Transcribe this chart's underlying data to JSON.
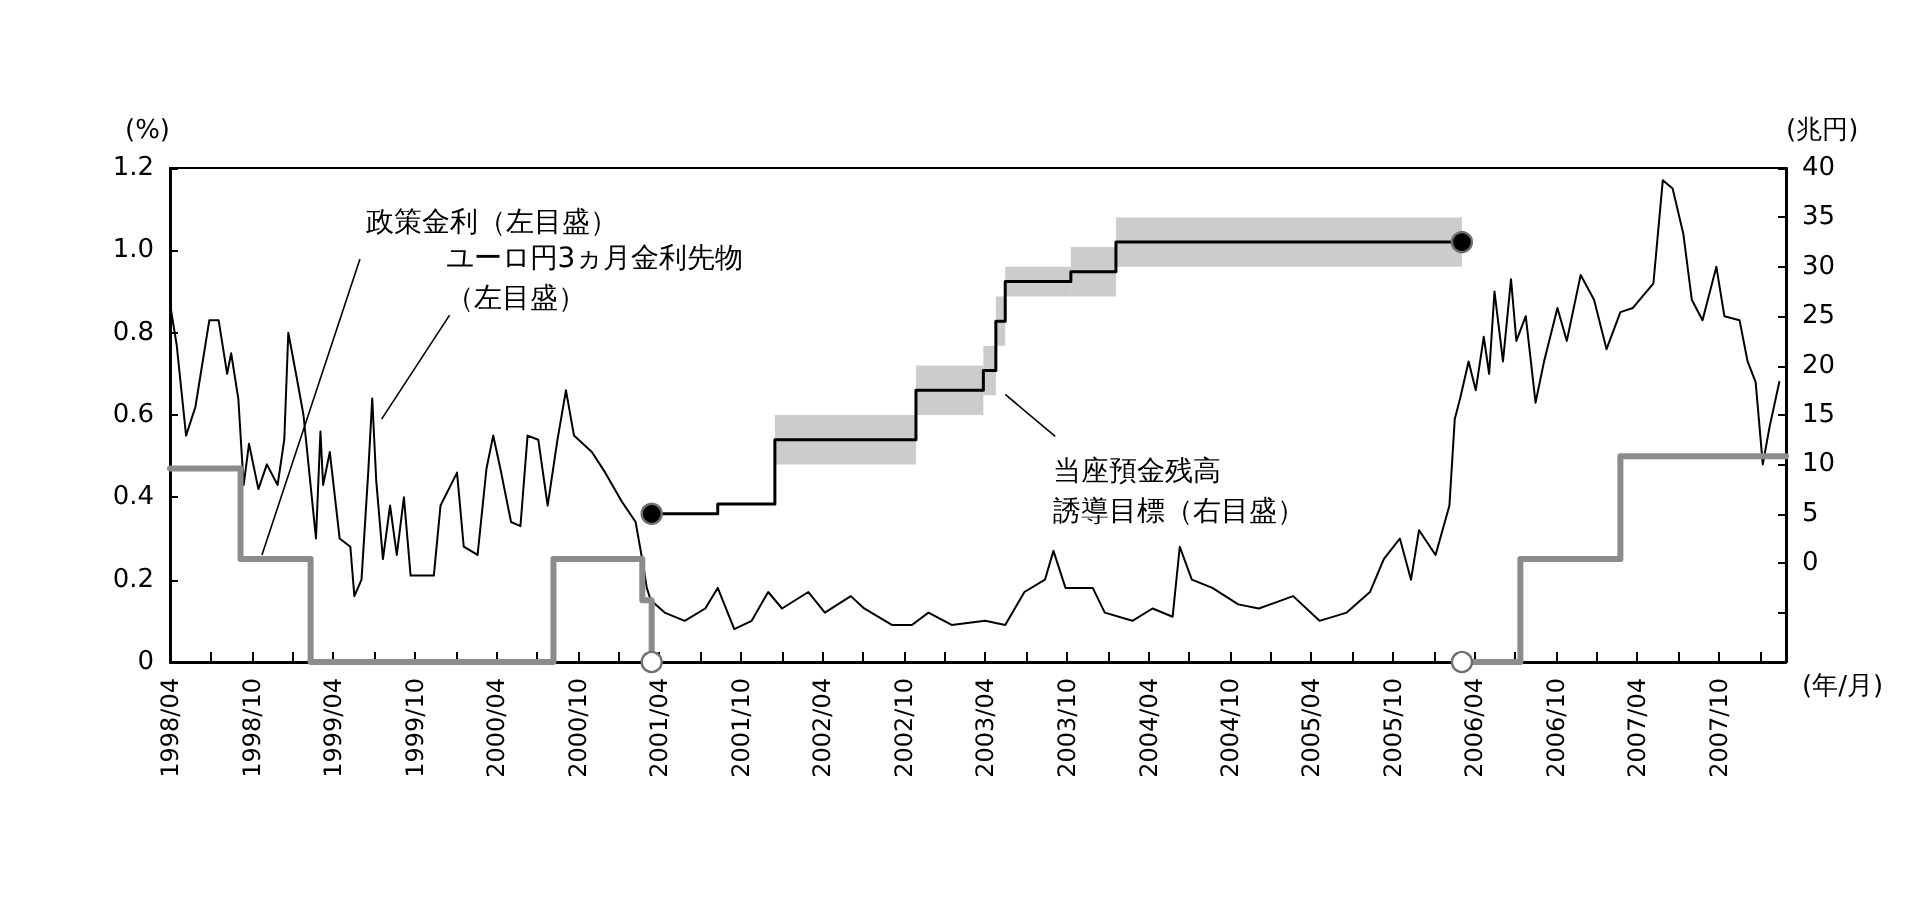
{
  "chart_data": {
    "type": "line",
    "ylabel": "(%)",
    "y2label": "(兆円)",
    "xlabel": "(年/月)",
    "xlim": [
      "1998-04-01",
      "2008-02-28"
    ],
    "ylim": [
      0,
      1.2
    ],
    "yticks": [
      0,
      0.2,
      0.4,
      0.6,
      0.8,
      {
        "value": 1,
        "label": "1.0"
      },
      1.2
    ],
    "y2lim": [
      -10,
      40
    ],
    "y2ticks": [
      {
        "value": -5,
        "label": null
      },
      0,
      5,
      10,
      15,
      20,
      25,
      30,
      35,
      40
    ],
    "xticks": [
      {
        "value": "1998-04",
        "label": "1998/04"
      },
      {
        "value": "1998-07",
        "label": null
      },
      {
        "value": "1998-10",
        "label": "1998/10"
      },
      {
        "value": "1999-01",
        "label": null
      },
      {
        "value": "1999-04",
        "label": "1999/04"
      },
      {
        "value": "1999-07",
        "label": null
      },
      {
        "value": "1999-10",
        "label": "1999/10"
      },
      {
        "value": "2000-01",
        "label": null
      },
      {
        "value": "2000-04",
        "label": "2000/04"
      },
      {
        "value": "2000-07",
        "label": null
      },
      {
        "value": "2000-10",
        "label": "2000/10"
      },
      {
        "value": "2001-01",
        "label": null
      },
      {
        "value": "2001-04",
        "label": "2001/04"
      },
      {
        "value": "2001-07",
        "label": null
      },
      {
        "value": "2001-10",
        "label": "2001/10"
      },
      {
        "value": "2002-01",
        "label": null
      },
      {
        "value": "2002-04",
        "label": "2002/04"
      },
      {
        "value": "2002-07",
        "label": null
      },
      {
        "value": "2002-10",
        "label": "2002/10"
      },
      {
        "value": "2003-01",
        "label": null
      },
      {
        "value": "2003-04",
        "label": "2003/04"
      },
      {
        "value": "2003-07",
        "label": null
      },
      {
        "value": "2003-10",
        "label": "2003/10"
      },
      {
        "value": "2004-01",
        "label": null
      },
      {
        "value": "2004-04",
        "label": "2004/04"
      },
      {
        "value": "2004-07",
        "label": null
      },
      {
        "value": "2004-10",
        "label": "2004/10"
      },
      {
        "value": "2005-01",
        "label": null
      },
      {
        "value": "2005-04",
        "label": "2005/04"
      },
      {
        "value": "2005-07",
        "label": null
      },
      {
        "value": "2005-10",
        "label": "2005/10"
      },
      {
        "value": "2006-01",
        "label": null
      },
      {
        "value": "2006-04",
        "label": "2006/04"
      },
      {
        "value": "2006-07",
        "label": null
      },
      {
        "value": "2006-10",
        "label": "2006/10"
      },
      {
        "value": "2007-01",
        "label": null
      },
      {
        "value": "2007-04",
        "label": "2007/04"
      },
      {
        "value": "2007-07",
        "label": null
      },
      {
        "value": "2007-10",
        "label": "2007/10"
      },
      {
        "value": "2008-01",
        "label": null
      }
    ],
    "grid": false,
    "marker": "none",
    "series": [
      {
        "color": "#000000",
        "x": [
          "1998-04-01",
          "1998-04-16",
          "1998-05-07",
          "1998-05-28",
          "1998-06-28",
          "1998-07-19",
          "1998-08-07",
          "1998-08-16",
          "1998-09-01",
          "1998-09-13",
          "1998-09-25",
          "1998-10-16",
          "1998-11-04",
          "1998-11-28",
          "1998-12-13",
          "1998-12-22",
          "1999-01-10",
          "1999-01-25",
          "1999-02-22",
          "1999-03-04",
          "1999-03-10",
          "1999-03-25",
          "1999-04-16",
          "1999-05-10",
          "1999-05-19",
          "1999-06-04",
          "1999-06-19",
          "1999-06-28",
          "1999-07-07",
          "1999-07-22",
          "1999-08-07",
          "1999-08-22",
          "1999-09-07",
          "1999-09-22",
          "1999-10-22",
          "1999-11-13",
          "1999-11-28",
          "2000-01-04",
          "2000-01-19",
          "2000-02-19",
          "2000-03-10",
          "2000-03-25",
          "2000-04-10",
          "2000-05-04",
          "2000-05-25",
          "2000-06-10",
          "2000-07-04",
          "2000-07-25",
          "2000-08-16",
          "2000-09-04",
          "2000-09-22",
          "2000-11-01",
          "2000-12-01",
          "2001-01-07",
          "2001-02-07",
          "2001-02-25",
          "2001-03-04",
          "2001-03-13",
          "2001-04-13",
          "2001-05-28",
          "2001-07-13",
          "2001-08-10",
          "2001-09-16",
          "2001-10-25",
          "2001-12-01",
          "2002-01-01",
          "2002-03-01",
          "2002-04-07",
          "2002-06-04",
          "2002-07-04",
          "2002-09-04",
          "2002-10-19",
          "2002-11-25",
          "2003-01-16",
          "2003-04-01",
          "2003-05-16",
          "2003-06-28",
          "2003-08-13",
          "2003-09-01",
          "2003-09-28",
          "2003-10-28",
          "2003-11-28",
          "2003-12-25",
          "2004-02-25",
          "2004-04-10",
          "2004-05-25",
          "2004-06-10",
          "2004-07-07",
          "2004-08-22",
          "2004-10-19",
          "2004-12-04",
          "2005-02-19",
          "2005-04-19",
          "2005-06-19",
          "2005-08-10",
          "2005-09-10",
          "2005-10-16",
          "2005-11-10",
          "2005-11-28",
          "2006-01-04",
          "2006-02-04",
          "2006-02-16",
          "2006-02-28",
          "2006-03-19",
          "2006-04-04",
          "2006-04-22",
          "2006-05-04",
          "2006-05-16",
          "2006-06-04",
          "2006-06-22",
          "2006-07-04",
          "2006-07-25",
          "2006-08-16",
          "2006-09-04",
          "2006-10-04",
          "2006-10-25",
          "2006-11-25",
          "2006-12-25",
          "2007-01-22",
          "2007-02-22",
          "2007-03-22",
          "2007-05-07",
          "2007-05-28",
          "2007-06-19",
          "2007-07-13",
          "2007-08-01",
          "2007-08-25",
          "2007-09-25",
          "2007-10-13",
          "2007-11-16",
          "2007-12-04",
          "2007-12-22",
          "2008-01-07",
          "2008-01-22",
          "2008-02-13"
        ],
        "values": [
          0.87,
          0.77,
          0.55,
          0.62,
          0.83,
          0.83,
          0.7,
          0.75,
          0.64,
          0.43,
          0.53,
          0.42,
          0.48,
          0.43,
          0.54,
          0.8,
          0.69,
          0.6,
          0.3,
          0.56,
          0.43,
          0.51,
          0.3,
          0.28,
          0.16,
          0.2,
          0.46,
          0.64,
          0.44,
          0.25,
          0.38,
          0.26,
          0.4,
          0.21,
          0.21,
          0.21,
          0.38,
          0.46,
          0.28,
          0.26,
          0.47,
          0.55,
          0.47,
          0.34,
          0.33,
          0.55,
          0.54,
          0.38,
          0.54,
          0.66,
          0.55,
          0.51,
          0.46,
          0.39,
          0.34,
          0.23,
          0.18,
          0.15,
          0.12,
          0.1,
          0.13,
          0.18,
          0.08,
          0.1,
          0.17,
          0.13,
          0.17,
          0.12,
          0.16,
          0.13,
          0.09,
          0.09,
          0.12,
          0.09,
          0.1,
          0.09,
          0.17,
          0.2,
          0.27,
          0.18,
          0.18,
          0.18,
          0.12,
          0.1,
          0.13,
          0.11,
          0.28,
          0.2,
          0.18,
          0.14,
          0.13,
          0.16,
          0.1,
          0.12,
          0.17,
          0.25,
          0.3,
          0.2,
          0.32,
          0.26,
          0.38,
          0.59,
          0.64,
          0.73,
          0.66,
          0.79,
          0.7,
          0.9,
          0.73,
          0.93,
          0.78,
          0.84,
          0.63,
          0.73,
          0.86,
          0.78,
          0.94,
          0.88,
          0.76,
          0.85,
          0.86,
          0.92,
          1.17,
          1.15,
          1.04,
          0.88,
          0.83,
          0.96,
          0.84,
          0.83,
          0.73,
          0.68,
          0.48,
          0.57,
          0.68
        ]
      },
      {
        "type": "step",
        "color": "#8c8c8c",
        "x": [
          "1998-04-01",
          "1998-09-06",
          "1999-02-10",
          "2000-08-07",
          "2001-02-22",
          "2001-03-15",
          "2001-04-01",
          "2006-03-04",
          "2006-07-13",
          "2007-02-22",
          "2008-02-28"
        ],
        "values": [
          0.47,
          0.25,
          0,
          0.25,
          0.15,
          0,
          null,
          0,
          0.25,
          0.5,
          0.5
        ]
      },
      {
        "type": "step",
        "axis": "y2",
        "color": "#000000",
        "x": [
          "2001-03-15",
          "2001-08-10",
          "2001-12-16",
          "2002-10-28",
          "2003-03-28",
          "2003-04-25",
          "2003-05-16",
          "2003-10-10",
          "2004-01-19",
          "2006-03-04"
        ],
        "values": [
          5,
          6,
          12.5,
          17.5,
          19.5,
          24.5,
          28.5,
          29.5,
          32.5,
          32.5
        ],
        "lower": [
          null,
          null,
          10,
          15,
          17,
          22,
          27,
          27,
          30,
          30
        ],
        "upper": [
          null,
          null,
          15,
          20,
          22,
          27,
          30,
          32,
          35,
          35
        ]
      },
      {
        "type": "scatter",
        "marker": "circle",
        "color": "#ffffff",
        "x": [
          "2001-03-15",
          "2006-03-04"
        ],
        "values": [
          0,
          0
        ]
      },
      {
        "type": "scatter",
        "axis": "y2",
        "marker": "circle",
        "color": "#000000",
        "x": [
          "2001-03-15",
          "2006-03-04"
        ],
        "values": [
          5,
          32.5
        ]
      }
    ],
    "annotations": [
      {
        "text": "政策金利（左目盛）",
        "x": "1998-10-24",
        "y": 0.26
      },
      {
        "text": "ユーロ円3ヵ月金利先物（左目盛）",
        "x": "1999-07-19",
        "y": 0.59
      },
      {
        "text": "当座預金残高誘導目標（右目盛）",
        "x": "2003-05-16",
        "y": 0.65
      }
    ]
  }
}
